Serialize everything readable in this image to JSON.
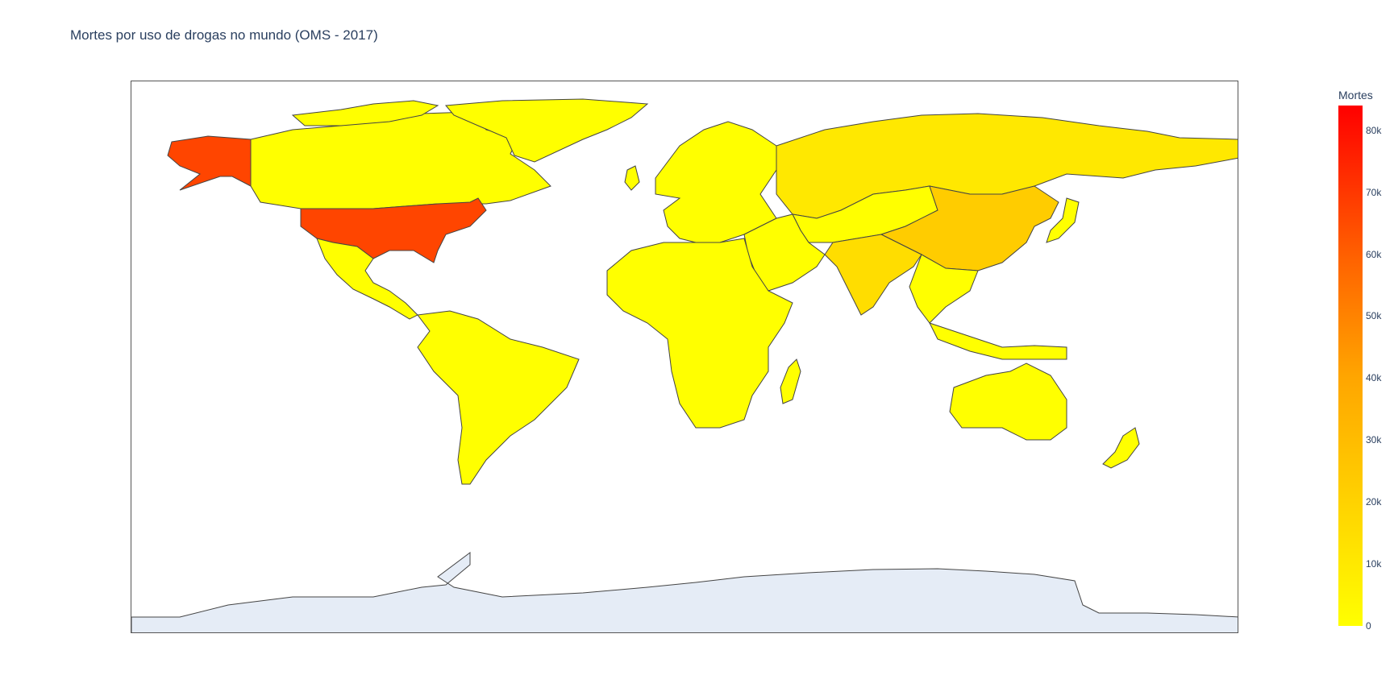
{
  "title": "Mortes por uso de drogas no mundo (OMS - 2017)",
  "colorbar": {
    "title": "Mortes",
    "ticks": [
      "0",
      "10k",
      "20k",
      "30k",
      "40k",
      "50k",
      "60k",
      "70k",
      "80k"
    ],
    "range": [
      0,
      84000
    ],
    "colors": [
      "#ffff00",
      "#ffd000",
      "#ffa500",
      "#ff6400",
      "#ff0000"
    ]
  },
  "map": {
    "projection": "equirectangular",
    "land_default_color": "#ffff00",
    "ocean_color": "#ffffff",
    "antarctica_color": "#e5ecf6",
    "border_color": "#444444",
    "highlighted": [
      {
        "country": "United States",
        "approx_deaths": 70000,
        "color": "#ff4500"
      },
      {
        "country": "China",
        "approx_deaths": 25000,
        "color": "#ffcc00"
      },
      {
        "country": "Russia",
        "approx_deaths": 10000,
        "color": "#ffe800"
      },
      {
        "country": "India",
        "approx_deaths": 15000,
        "color": "#ffdd00"
      }
    ]
  }
}
